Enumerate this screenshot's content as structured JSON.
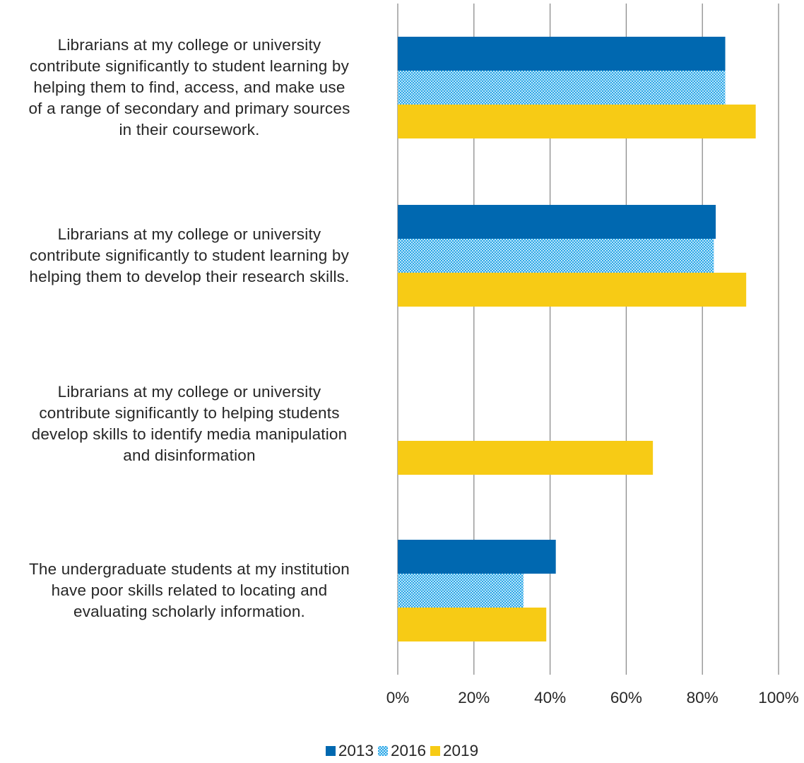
{
  "chart_data": {
    "type": "bar",
    "orientation": "horizontal",
    "categories": [
      "Librarians at my college or university contribute significantly to student learning by helping them to find, access, and make use of a range of secondary and primary sources in their coursework.",
      "Librarians at my college or university contribute significantly to student learning by helping them to develop their research skills.",
      "Librarians at my college or university contribute significantly to helping students develop skills to identify media manipulation and disinformation",
      "The undergraduate students at my institution have poor skills related to locating and evaluating scholarly information."
    ],
    "category_lines": [
      [
        "Librarians at my college or university",
        "contribute significantly to student learning by",
        "helping them to find, access, and make use",
        "of a range of secondary and primary sources",
        "in their coursework."
      ],
      [
        "Librarians at my college or university",
        "contribute significantly to student learning by",
        "helping them to develop their research skills."
      ],
      [
        "Librarians at my college or university",
        "contribute significantly to helping students",
        "develop skills to identify media manipulation",
        "and disinformation"
      ],
      [
        "The undergraduate students at my institution",
        "have poor skills related to locating and",
        "evaluating scholarly information."
      ]
    ],
    "series": [
      {
        "name": "2013",
        "values": [
          86,
          83.5,
          null,
          41.5
        ],
        "color": "#0068b0",
        "pattern": "solid"
      },
      {
        "name": "2016",
        "values": [
          86,
          83,
          null,
          33
        ],
        "color": "#3cb0ea",
        "pattern": "checker"
      },
      {
        "name": "2019",
        "values": [
          94,
          91.5,
          67,
          39
        ],
        "color": "#f7cb15",
        "pattern": "solid"
      }
    ],
    "xlim": [
      0,
      100
    ],
    "xticks": [
      0,
      20,
      40,
      60,
      80,
      100
    ],
    "xtick_labels": [
      "0%",
      "20%",
      "40%",
      "60%",
      "80%",
      "100%"
    ],
    "grid": true,
    "legend_position": "bottom"
  }
}
